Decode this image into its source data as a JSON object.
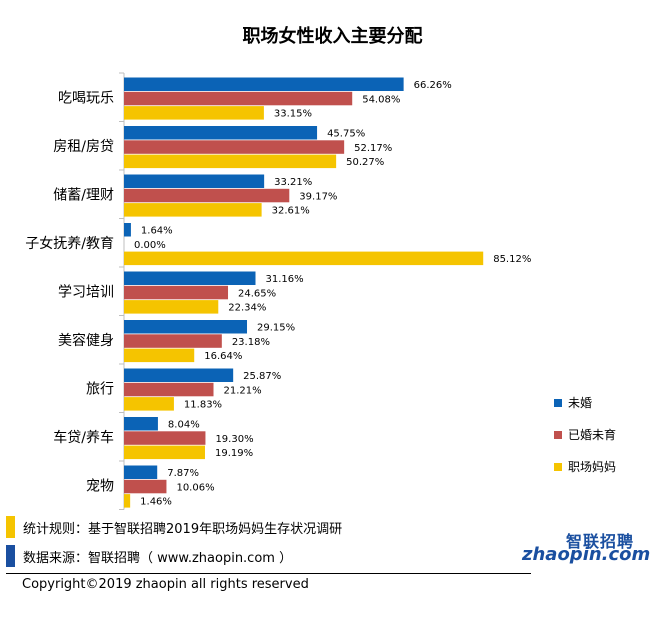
{
  "chart_data": {
    "type": "bar",
    "orientation": "horizontal",
    "title": "职场女性收入主要分配",
    "categories": [
      "吃喝玩乐",
      "房租/房贷",
      "储蓄/理财",
      "子女抚养/教育",
      "学习培训",
      "美容健身",
      "旅行",
      "车贷/养车",
      "宠物"
    ],
    "series": [
      {
        "name": "未婚",
        "color": "#0b63b6",
        "values": [
          66.26,
          45.75,
          33.21,
          1.64,
          31.16,
          29.15,
          25.87,
          8.04,
          7.87
        ]
      },
      {
        "name": "已婚未育",
        "color": "#c0504d",
        "values": [
          54.08,
          52.17,
          39.17,
          0.0,
          24.65,
          23.18,
          21.21,
          19.3,
          10.06
        ]
      },
      {
        "name": "职场妈妈",
        "color": "#f5c400",
        "values": [
          33.15,
          50.27,
          32.61,
          85.12,
          22.34,
          16.64,
          11.83,
          19.19,
          1.46
        ]
      }
    ],
    "value_suffix": "%",
    "xlim": [
      0,
      100
    ],
    "legend_position": "right"
  },
  "notes": {
    "rule": "统计规则：基于智联招聘2019年职场妈妈生存状况调研",
    "source": "数据来源：智联招聘（ www.zhaopin.com ）",
    "rule_color": "#f5c400",
    "source_color": "#1a4fa0"
  },
  "copyright": "Copyright©2019 zhaopin all rights reserved",
  "logo": {
    "cn": "智联招聘",
    "en": "zhaopin.com"
  }
}
